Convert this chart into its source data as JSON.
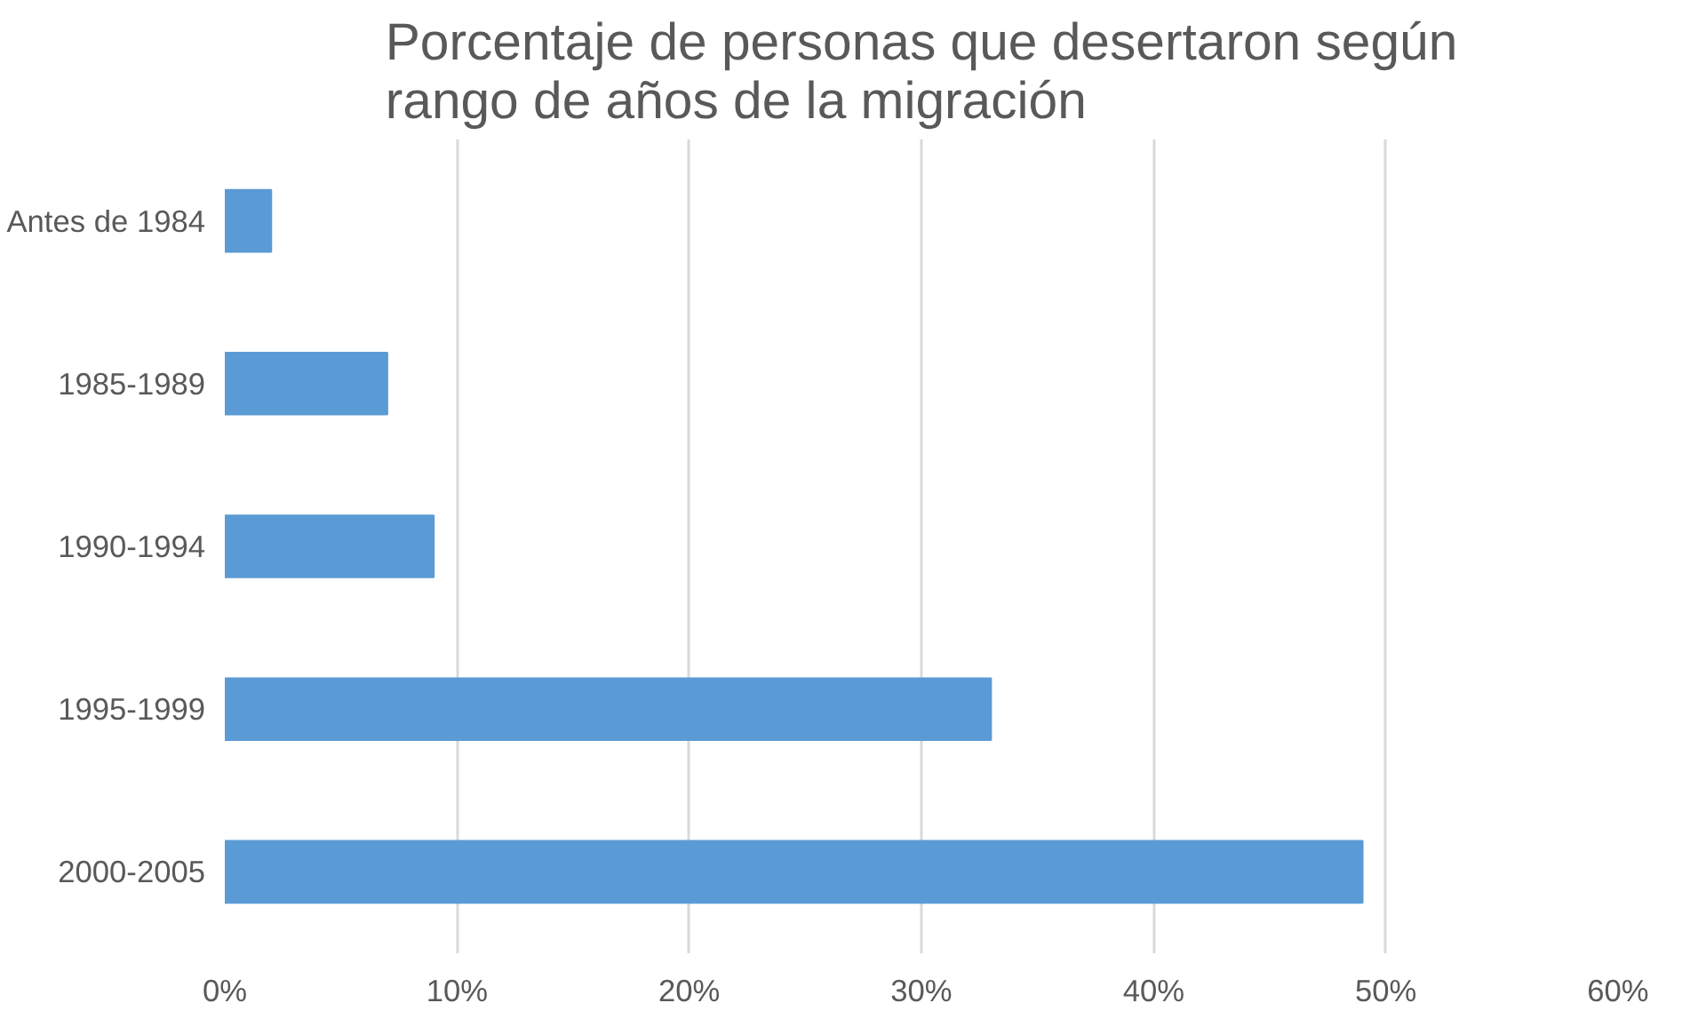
{
  "chart_data": {
    "type": "bar",
    "orientation": "horizontal",
    "title": "Porcentaje de personas que desertaron según rango de años de la migración",
    "categories": [
      "Antes de 1984",
      "1985-1989",
      "1990-1994",
      "1995-1999",
      "2000-2005"
    ],
    "values": [
      2,
      7,
      9,
      33,
      49
    ],
    "color": "#5b9bd5",
    "xlim": [
      0,
      60
    ],
    "xticks": [
      {
        "value": 0,
        "label": "0%"
      },
      {
        "value": 10,
        "label": "10%"
      },
      {
        "value": 20,
        "label": "20%"
      },
      {
        "value": 30,
        "label": "30%"
      },
      {
        "value": 40,
        "label": "40%"
      },
      {
        "value": 50,
        "label": "50%"
      },
      {
        "value": 60,
        "label": "60%"
      }
    ],
    "grid": "x"
  }
}
